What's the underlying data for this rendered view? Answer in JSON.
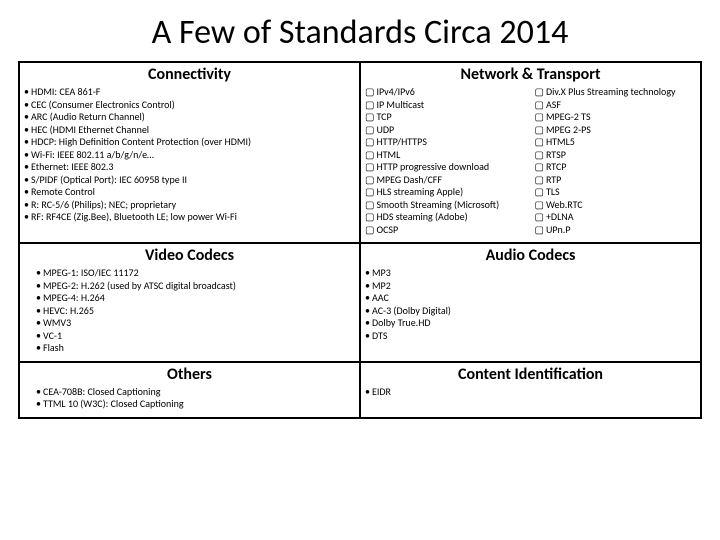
{
  "title": "A Few of Standards Circa 2014",
  "sections": {
    "connectivity": {
      "header": "Connectivity",
      "items": [
        "HDMI: CEA 861-F",
        "CEC (Consumer Electronics Control)",
        "ARC (Audio Return Channel)",
        "HEC (HDMI Ethernet Channel",
        "HDCP: High Definition Content Protection (over HDMI)",
        "Wi-Fi: IEEE 802.11 a/b/g/n/e…",
        "Ethernet: IEEE 802.3",
        "S/PIDF (Optical Port): IEC 60958 type II",
        "Remote Control",
        "R: RC-5/6 (Philips); NEC; proprietary",
        "RF: RF4CE (Zig.Bee), Bluetooth LE; low power Wi-Fi"
      ]
    },
    "network": {
      "header": "Network & Transport",
      "col1": [
        "IPv4/IPv6",
        "IP Multicast",
        "TCP",
        "UDP",
        "HTTP/HTTPS",
        "HTML",
        "HTTP progressive download",
        "MPEG Dash/CFF",
        "HLS streaming Apple)",
        "Smooth Streaming (Microsoft)",
        "HDS steaming (Adobe)",
        "OCSP"
      ],
      "col2": [
        "Div.X Plus Streaming technology",
        "ASF",
        "MPEG-2 TS",
        "MPEG 2-PS",
        "HTML5",
        "RTSP",
        "RTCP",
        "RTP",
        "TLS",
        "Web.RTC",
        "+DLNA",
        "UPn.P"
      ]
    },
    "video": {
      "header": "Video Codecs",
      "items": [
        "MPEG-1: ISO/IEC 11172",
        "MPEG-2: H.262 (used by ATSC digital broadcast)",
        "MPEG-4: H.264",
        "HEVC: H.265",
        "WMV3",
        "VC-1",
        "Flash"
      ]
    },
    "audio": {
      "header": "Audio Codecs",
      "items": [
        "MP3",
        "MP2",
        "AAC",
        "AC-3 (Dolby Digital)",
        "Dolby True.HD",
        "DTS"
      ]
    },
    "others": {
      "header": "Others",
      "items": [
        "CEA-708B: Closed Captioning",
        "TTML 10 (W3C): Closed Captioning"
      ]
    },
    "contentid": {
      "header": "Content Identification",
      "items": [
        "EIDR"
      ]
    }
  },
  "style": {
    "bullet": "•",
    "box_bullet": "▢",
    "title_fontsize": 34,
    "header_fontsize": 16,
    "item_fontsize": 10,
    "border_color": "#000000",
    "background": "#ffffff",
    "text_color": "#000000"
  }
}
